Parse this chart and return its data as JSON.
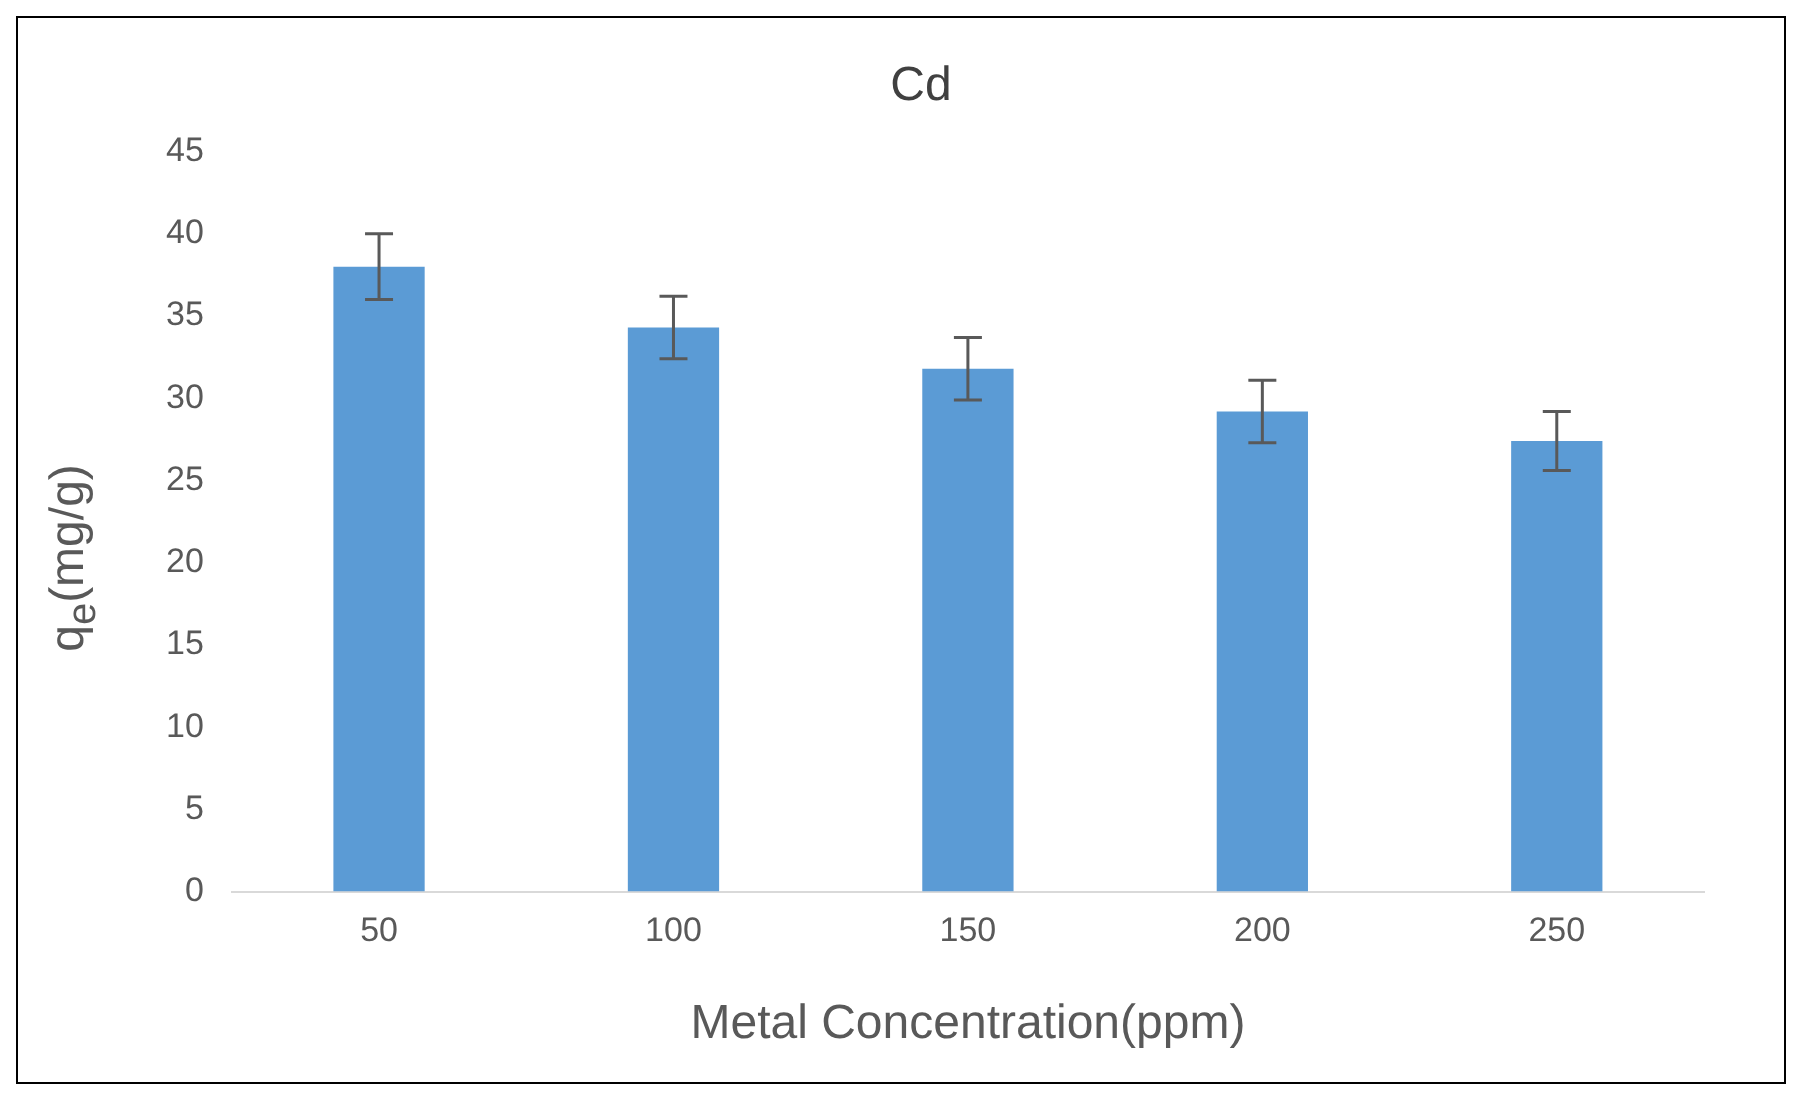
{
  "chart_data": {
    "type": "bar",
    "title": "Cd",
    "xlabel": "Metal Concentration(ppm)",
    "ylabel": "q$_{e}$(mg/g)",
    "categories": [
      "50",
      "100",
      "150",
      "200",
      "250"
    ],
    "values": [
      38,
      34.3,
      31.8,
      29.2,
      27.4
    ],
    "errors": [
      2,
      1.9,
      1.9,
      1.9,
      1.8
    ],
    "color": "#5b9bd5",
    "ylim": [
      0,
      45
    ],
    "yticks": [
      0,
      5,
      10,
      15,
      20,
      25,
      30,
      35,
      40,
      45
    ],
    "grid": false
  }
}
